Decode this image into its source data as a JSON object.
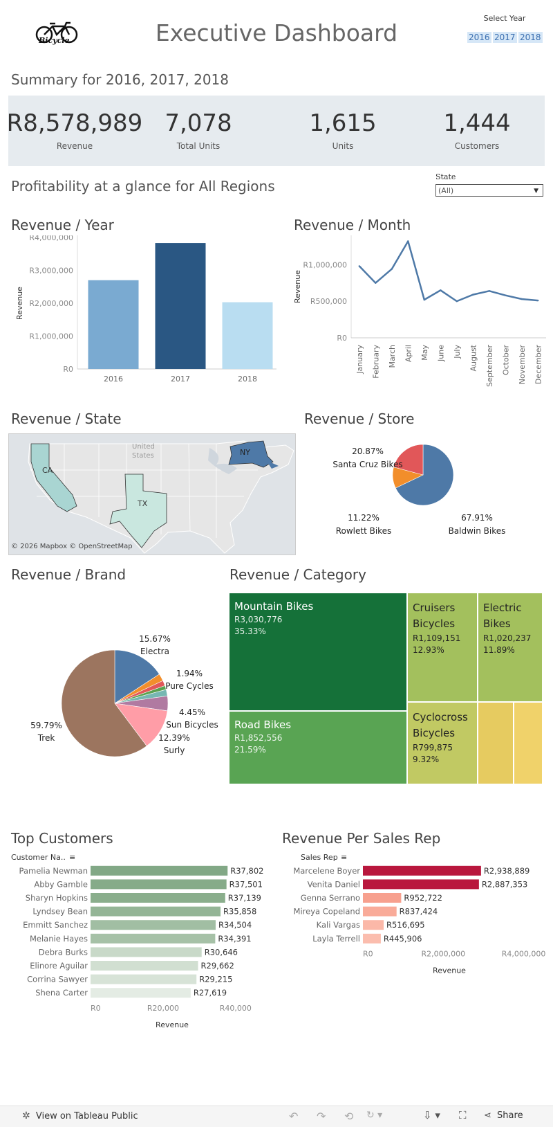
{
  "header": {
    "title": "Executive Dashboard",
    "logo_text": "Bicycle",
    "select_year_label": "Select Year",
    "years": [
      "2016",
      "2017",
      "2018"
    ]
  },
  "summary": {
    "title": "Summary for 2016, 2017, 2018",
    "kpis": [
      {
        "value": "R8,578,989",
        "label": "Revenue"
      },
      {
        "value": "7,078",
        "label": "Total Units"
      },
      {
        "value": "1,615",
        "label": "Units"
      },
      {
        "value": "1,444",
        "label": "Customers"
      }
    ]
  },
  "profitability": {
    "title": "Profitability at a glance for All Regions",
    "state_label": "State",
    "state_value": "(All)"
  },
  "colors": {
    "revenue_year": [
      "#7aaad1",
      "#2a5783",
      "#b9ddf1"
    ],
    "line": "#4e79a7",
    "pie_store": [
      "#4e79a7",
      "#f28e2b",
      "#e15759"
    ],
    "green_dark": "#157139",
    "green_mid": "#59a453",
    "green_light": "#a3c05d",
    "yellow_green": "#c1c963",
    "yellow": "#e6cb60",
    "customer_bar": "#8fb08f",
    "rep_dark": "#b9173d",
    "rep_light": "#f99a87"
  },
  "map": {
    "title": "Revenue / State",
    "label_country": "United States",
    "states": [
      "CA",
      "TX",
      "NY"
    ],
    "attribution": "© 2026 Mapbox  © OpenStreetMap"
  },
  "bottom_bar": {
    "view_label": "View on Tableau Public",
    "share_label": "Share"
  },
  "chart_data": [
    {
      "type": "bar",
      "title": "Revenue / Year",
      "categories": [
        "2016",
        "2017",
        "2018"
      ],
      "values": [
        2700000,
        3830000,
        2030000
      ],
      "ylabel": "Revenue",
      "ylim": [
        0,
        4000000
      ],
      "yticks": [
        0,
        1000000,
        2000000,
        3000000,
        4000000
      ],
      "ytick_labels": [
        "R0",
        "R1,000,000",
        "R2,000,000",
        "R3,000,000",
        "R4,000,000"
      ]
    },
    {
      "type": "line",
      "title": "Revenue / Month",
      "categories": [
        "January",
        "February",
        "March",
        "April",
        "May",
        "June",
        "July",
        "August",
        "September",
        "October",
        "November",
        "December"
      ],
      "values": [
        980000,
        750000,
        940000,
        1320000,
        520000,
        650000,
        500000,
        590000,
        640000,
        580000,
        530000,
        510000
      ],
      "ylabel": "Revenue",
      "ylim": [
        0,
        1400000
      ],
      "yticks": [
        0,
        500000,
        1000000
      ],
      "ytick_labels": [
        "R0",
        "R500,000",
        "R1,000,000"
      ]
    },
    {
      "type": "pie",
      "title": "Revenue / Store",
      "slices": [
        {
          "label": "Baldwin Bikes",
          "pct": "67.91%",
          "value": 67.91
        },
        {
          "label": "Rowlett Bikes",
          "pct": "11.22%",
          "value": 11.22
        },
        {
          "label": "Santa Cruz Bikes",
          "pct": "20.87%",
          "value": 20.87
        }
      ]
    },
    {
      "type": "pie",
      "title": "Revenue / Brand",
      "slices": [
        {
          "label": "Electra",
          "pct": "15.67%",
          "value": 15.67,
          "color": "#4e79a7"
        },
        {
          "label": "",
          "pct": "",
          "value": 2.2,
          "color": "#f28e2b"
        },
        {
          "label": "",
          "pct": "",
          "value": 1.6,
          "color": "#e15759"
        },
        {
          "label": "",
          "pct": "",
          "value": 1.2,
          "color": "#59a14f"
        },
        {
          "label": "Pure Cycles",
          "pct": "1.94%",
          "value": 1.94,
          "color": "#76b7b2"
        },
        {
          "label": "Sun Bicycles",
          "pct": "4.45%",
          "value": 4.45,
          "color": "#b07aa1"
        },
        {
          "label": "Surly",
          "pct": "12.39%",
          "value": 12.39,
          "color": "#ff9da7"
        },
        {
          "label": "Trek",
          "pct": "59.79%",
          "value": 59.79,
          "color": "#9c755f"
        }
      ]
    },
    {
      "type": "treemap",
      "title": "Revenue / Category",
      "items": [
        {
          "name": "Mountain Bikes",
          "value": "R3,030,776",
          "pct": "35.33%"
        },
        {
          "name": "Road Bikes",
          "value": "R1,852,556",
          "pct": "21.59%"
        },
        {
          "name": "Cruisers Bicycles",
          "value": "R1,109,151",
          "pct": "12.93%"
        },
        {
          "name": "Electric Bikes",
          "value": "R1,020,237",
          "pct": "11.89%"
        },
        {
          "name": "Cyclocross Bicycles",
          "value": "R799,875",
          "pct": "9.32%"
        }
      ]
    },
    {
      "type": "bar",
      "orientation": "horizontal",
      "title": "Top Customers",
      "dimension_header": "Customer Na..",
      "xlabel": "Revenue",
      "categories": [
        "Pamelia Newman",
        "Abby Gamble",
        "Sharyn Hopkins",
        "Lyndsey Bean",
        "Emmitt Sanchez",
        "Melanie Hayes",
        "Debra Burks",
        "Elinore Aguilar",
        "Corrina Sawyer",
        "Shena Carter"
      ],
      "values": [
        37802,
        37501,
        37139,
        35858,
        34504,
        34391,
        30646,
        29662,
        29215,
        27619
      ],
      "value_labels": [
        "R37,802",
        "R37,501",
        "R37,139",
        "R35,858",
        "R34,504",
        "R34,391",
        "R30,646",
        "R29,662",
        "R29,215",
        "R27,619"
      ],
      "xlim": [
        0,
        45000
      ],
      "xticks": [
        0,
        20000,
        40000
      ],
      "xtick_labels": [
        "R0",
        "R20,000",
        "R40,000"
      ]
    },
    {
      "type": "bar",
      "orientation": "horizontal",
      "title": "Revenue Per Sales Rep",
      "dimension_header": "Sales Rep",
      "xlabel": "Revenue",
      "categories": [
        "Marcelene Boyer",
        "Venita Daniel",
        "Genna Serrano",
        "Mireya Copeland",
        "Kali Vargas",
        "Layla Terrell"
      ],
      "values": [
        2938889,
        2887353,
        952722,
        837424,
        516695,
        445906
      ],
      "value_labels": [
        "R2,938,889",
        "R2,887,353",
        "R952,722",
        "R837,424",
        "R516,695",
        "R445,906"
      ],
      "xlim": [
        0,
        4300000
      ],
      "xticks": [
        0,
        2000000,
        4000000
      ],
      "xtick_labels": [
        "R0",
        "R2,000,000",
        "R4,000,000"
      ]
    }
  ]
}
